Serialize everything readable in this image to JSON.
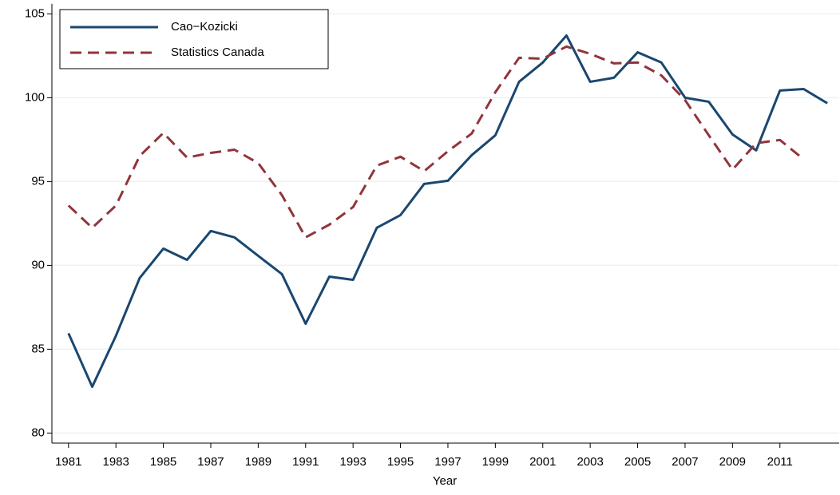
{
  "chart_data": {
    "type": "line",
    "x": [
      1981,
      1982,
      1983,
      1984,
      1985,
      1986,
      1987,
      1988,
      1989,
      1990,
      1991,
      1992,
      1993,
      1994,
      1995,
      1996,
      1997,
      1998,
      1999,
      2000,
      2001,
      2002,
      2003,
      2004,
      2005,
      2006,
      2007,
      2008,
      2009,
      2010,
      2011,
      2012,
      2013
    ],
    "series": [
      {
        "name": "Cao−Kozicki",
        "color": "#1a476f",
        "dashed": false,
        "values": [
          85.95,
          82.76,
          85.8,
          89.24,
          91.0,
          90.33,
          92.05,
          91.67,
          90.57,
          89.48,
          86.52,
          89.33,
          89.14,
          92.24,
          93.0,
          94.86,
          95.05,
          96.57,
          97.76,
          100.95,
          102.1,
          103.71,
          100.95,
          101.19,
          102.71,
          102.1,
          100.0,
          99.76,
          97.81,
          96.86,
          100.43,
          100.52,
          99.67
        ]
      },
      {
        "name": "Statistics Canada",
        "color": "#90353b",
        "dashed": true,
        "values": [
          93.57,
          92.24,
          93.57,
          96.52,
          97.9,
          96.43,
          96.71,
          96.9,
          96.1,
          94.19,
          91.67,
          92.43,
          93.48,
          95.95,
          96.48,
          95.62,
          96.81,
          97.86,
          100.33,
          102.38,
          102.33,
          103.05,
          102.62,
          102.05,
          102.1,
          101.33,
          99.86,
          97.76,
          95.71,
          97.29,
          97.48,
          96.33,
          null
        ]
      }
    ],
    "x_label": "Year",
    "xlim": [
      1980.3,
      2013.5
    ],
    "xticks": [
      1981,
      1983,
      1985,
      1987,
      1989,
      1991,
      1993,
      1995,
      1997,
      1999,
      2001,
      2003,
      2005,
      2007,
      2009,
      2011
    ],
    "ylim": [
      79.4,
      105.6
    ],
    "yticks": [
      80,
      85,
      90,
      95,
      100,
      105
    ],
    "grid": true,
    "legend": "top-left"
  }
}
